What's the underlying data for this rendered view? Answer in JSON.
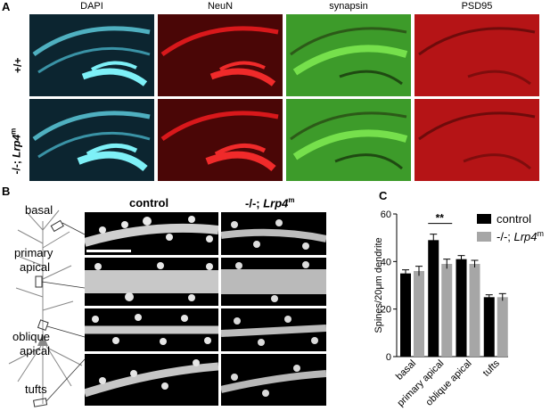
{
  "panelA": {
    "letter": "A",
    "columns": [
      "DAPI",
      "NeuN",
      "synapsin",
      "PSD95"
    ],
    "column_colors": [
      "#6fe3ea",
      "#e0191c",
      "#5fd23c",
      "#d21b1b"
    ],
    "rows": [
      {
        "label": "+/+"
      },
      {
        "label_prefix": "-/-; ",
        "label_gene": "Lrp4",
        "label_sup": "m"
      }
    ]
  },
  "panelB": {
    "letter": "B",
    "col_headers": [
      {
        "text": "control"
      },
      {
        "prefix": "-/-; ",
        "gene": "Lrp4",
        "sup": "m"
      }
    ],
    "neuron_labels": [
      "basal",
      "primary",
      "apical",
      "oblique",
      "apical",
      "tufts"
    ]
  },
  "panelC": {
    "letter": "C",
    "significance": "**"
  },
  "chart_data": {
    "type": "bar",
    "categories": [
      "basal",
      "primary apical",
      "oblique apical",
      "tufts"
    ],
    "series": [
      {
        "name": "control",
        "color": "#000000",
        "values": [
          35,
          49,
          41,
          25
        ],
        "errors": [
          1.5,
          2.5,
          1.5,
          1.0
        ]
      },
      {
        "name": "-/-; Lrp4m",
        "color": "#a6a6a6",
        "values": [
          36,
          39,
          39,
          25
        ],
        "errors": [
          2.0,
          2.0,
          1.5,
          1.5
        ]
      }
    ],
    "ylabel": "Spines/20μm dendrite",
    "ylim": [
      0,
      60
    ],
    "yticks": [
      0,
      20,
      40,
      60
    ],
    "legend": [
      "control",
      "-/-; Lrp4m"
    ],
    "legend_placement": "top-right"
  }
}
